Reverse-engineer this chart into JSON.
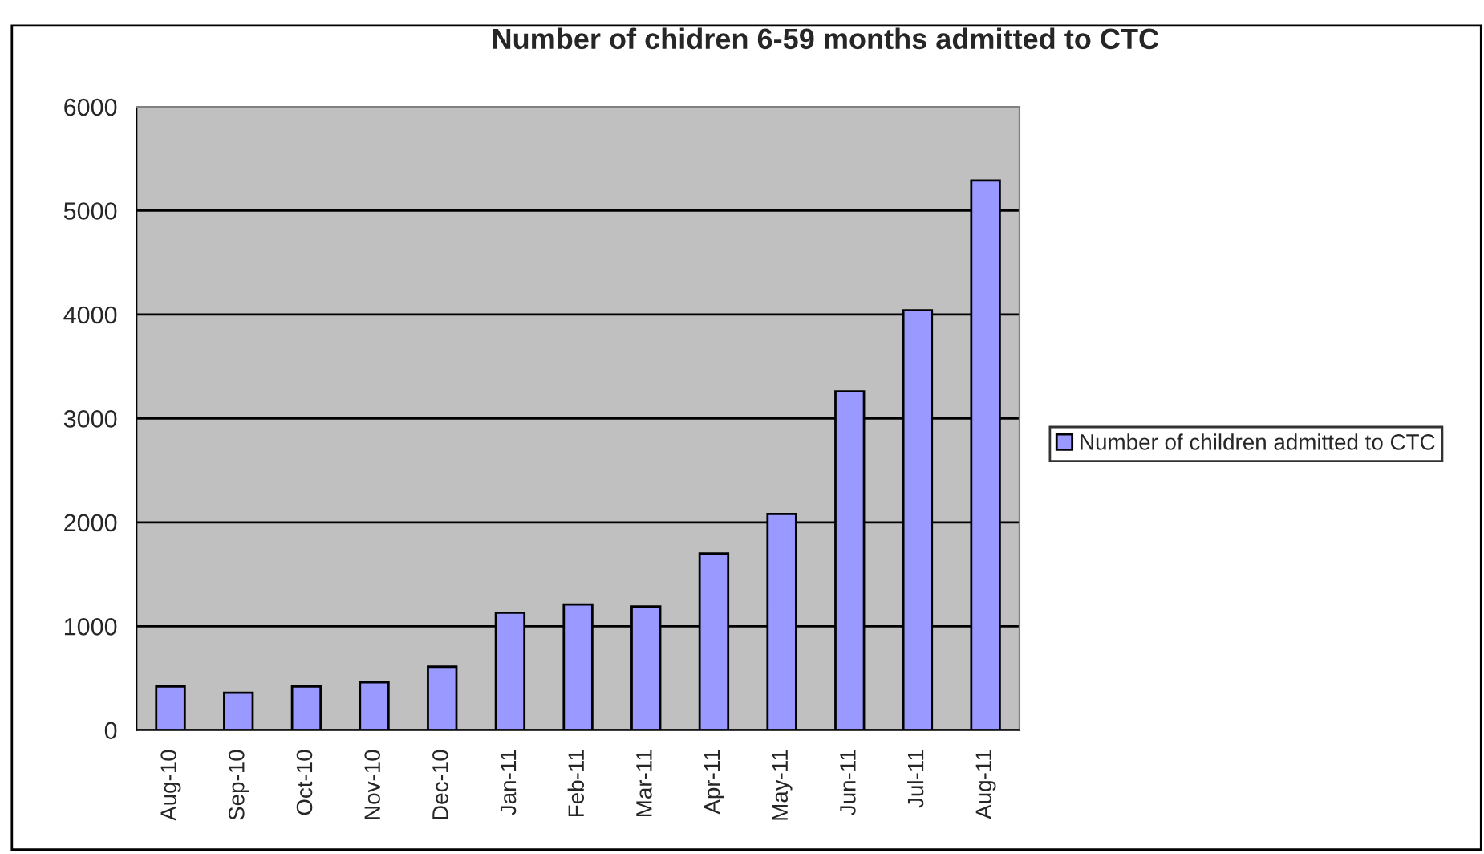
{
  "chart_data": {
    "type": "bar",
    "title": "Number of chidren 6-59 months admitted to CTC",
    "categories": [
      "Aug-10",
      "Sep-10",
      "Oct-10",
      "Nov-10",
      "Dec-10",
      "Jan-11",
      "Feb-11",
      "Mar-11",
      "Apr-11",
      "May-11",
      "Jun-11",
      "Jul-11",
      "Aug-11"
    ],
    "series": [
      {
        "name": "Number of children admitted to CTC",
        "color": "#9999ff",
        "values": [
          420,
          360,
          420,
          460,
          610,
          1130,
          1210,
          1190,
          1700,
          2080,
          3260,
          4040,
          5290
        ]
      }
    ],
    "ylim": [
      0,
      6000
    ],
    "yticks": [
      0,
      1000,
      2000,
      3000,
      4000,
      5000,
      6000
    ],
    "grid": "y",
    "legend": "right"
  }
}
